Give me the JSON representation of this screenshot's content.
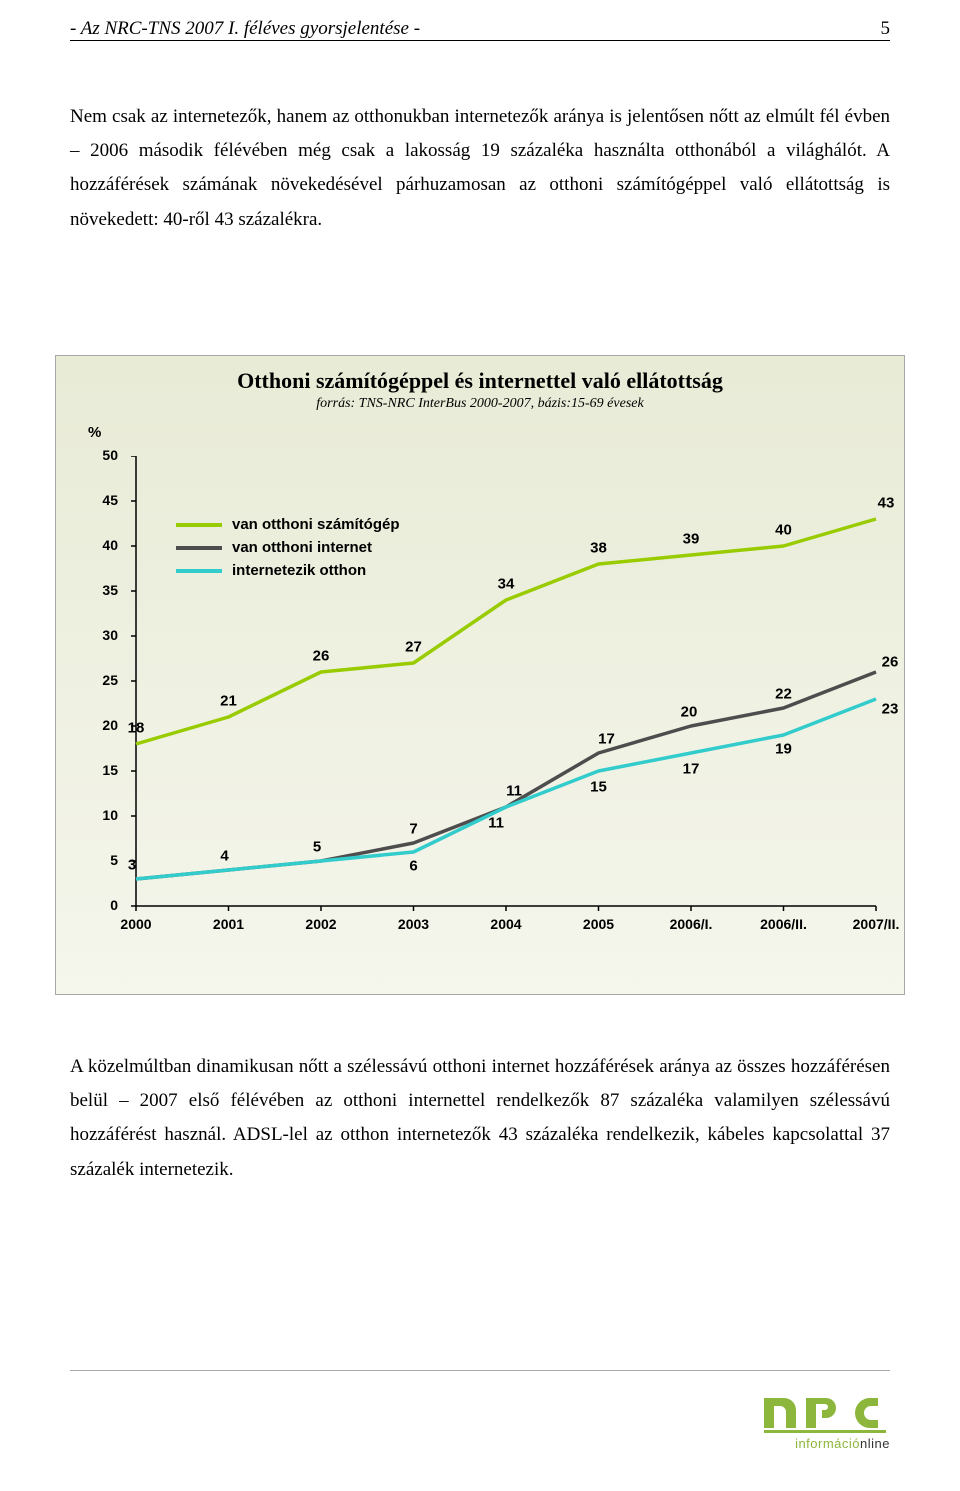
{
  "header": {
    "title": "- Az NRC-TNS 2007 I. féléves gyorsjelentése -",
    "page_number": "5"
  },
  "paragraphs": {
    "p1": "Nem csak az internetezők, hanem az otthonukban internetezők aránya is jelentősen nőtt az elmúlt fél évben – 2006 második félévében még csak a lakosság 19 százaléka használta otthonából a világhálót. A hozzáférések számának növekedésével párhuzamosan az otthoni számítógéppel való ellátottság is növekedett: 40-ről 43 százalékra.",
    "p2": "A közelmúltban dinamikusan nőtt a szélessávú otthoni internet hozzáférések aránya az összes hozzáférésen belül – 2007 első félévében az otthoni internettel rendelkezők 87 százaléka valamilyen szélessávú hozzáférést használ. ADSL-lel az otthon internetezők 43 százaléka rendelkezik, kábeles kapcsolattal 37 százalék internetezik."
  },
  "chart": {
    "title": "Otthoni számítógéppel és internettel való ellátottság",
    "subtitle": "forrás: TNS-NRC InterBus 2000-2007, bázis:15-69 évesek",
    "y_axis_label": "%",
    "ylim": [
      0,
      50
    ],
    "ytick_step": 5,
    "xlabels": [
      "2000",
      "2001",
      "2002",
      "2003",
      "2004",
      "2005",
      "2006/I.",
      "2006/II.",
      "2007/II."
    ],
    "series": [
      {
        "name": "van otthoni számítógép",
        "color": "#99cc00",
        "values": [
          18,
          21,
          26,
          27,
          34,
          38,
          39,
          40,
          43
        ]
      },
      {
        "name": "van otthoni internet",
        "color": "#4d4d4d",
        "values": [
          3,
          4,
          5,
          7,
          11,
          17,
          20,
          22,
          26
        ]
      },
      {
        "name": "internetezik otthon",
        "color": "#33cccc",
        "values": [
          3,
          4,
          5,
          6,
          11,
          15,
          17,
          19,
          23
        ]
      }
    ],
    "line_width": 3.5,
    "background_gradient": [
      "#e8ebd6",
      "#f5f6ec"
    ],
    "axis_color": "#000000",
    "label_fontsize": 15,
    "tick_fontsize": 14,
    "data_label_offsets": [
      [
        [
          0,
          -16
        ],
        [
          0,
          -16
        ],
        [
          0,
          -16
        ],
        [
          0,
          -16
        ],
        [
          0,
          -16
        ],
        [
          0,
          -16
        ],
        [
          0,
          -16
        ],
        [
          0,
          -16
        ],
        [
          10,
          -16
        ]
      ],
      [
        [
          -4,
          -14
        ],
        [
          -4,
          -14
        ],
        [
          -4,
          -14
        ],
        [
          0,
          -14
        ],
        [
          8,
          -16
        ],
        [
          8,
          -14
        ],
        [
          -2,
          -14
        ],
        [
          0,
          -14
        ],
        [
          14,
          -10
        ]
      ],
      [
        [
          0,
          14
        ],
        [
          0,
          14
        ],
        [
          0,
          14
        ],
        [
          0,
          14
        ],
        [
          -10,
          16
        ],
        [
          0,
          16
        ],
        [
          0,
          16
        ],
        [
          0,
          14
        ],
        [
          14,
          10
        ]
      ]
    ]
  },
  "logo": {
    "primary_color": "#8cb63c",
    "text": "nrc",
    "subtitle_green": "információ",
    "subtitle_dark": "nline"
  }
}
